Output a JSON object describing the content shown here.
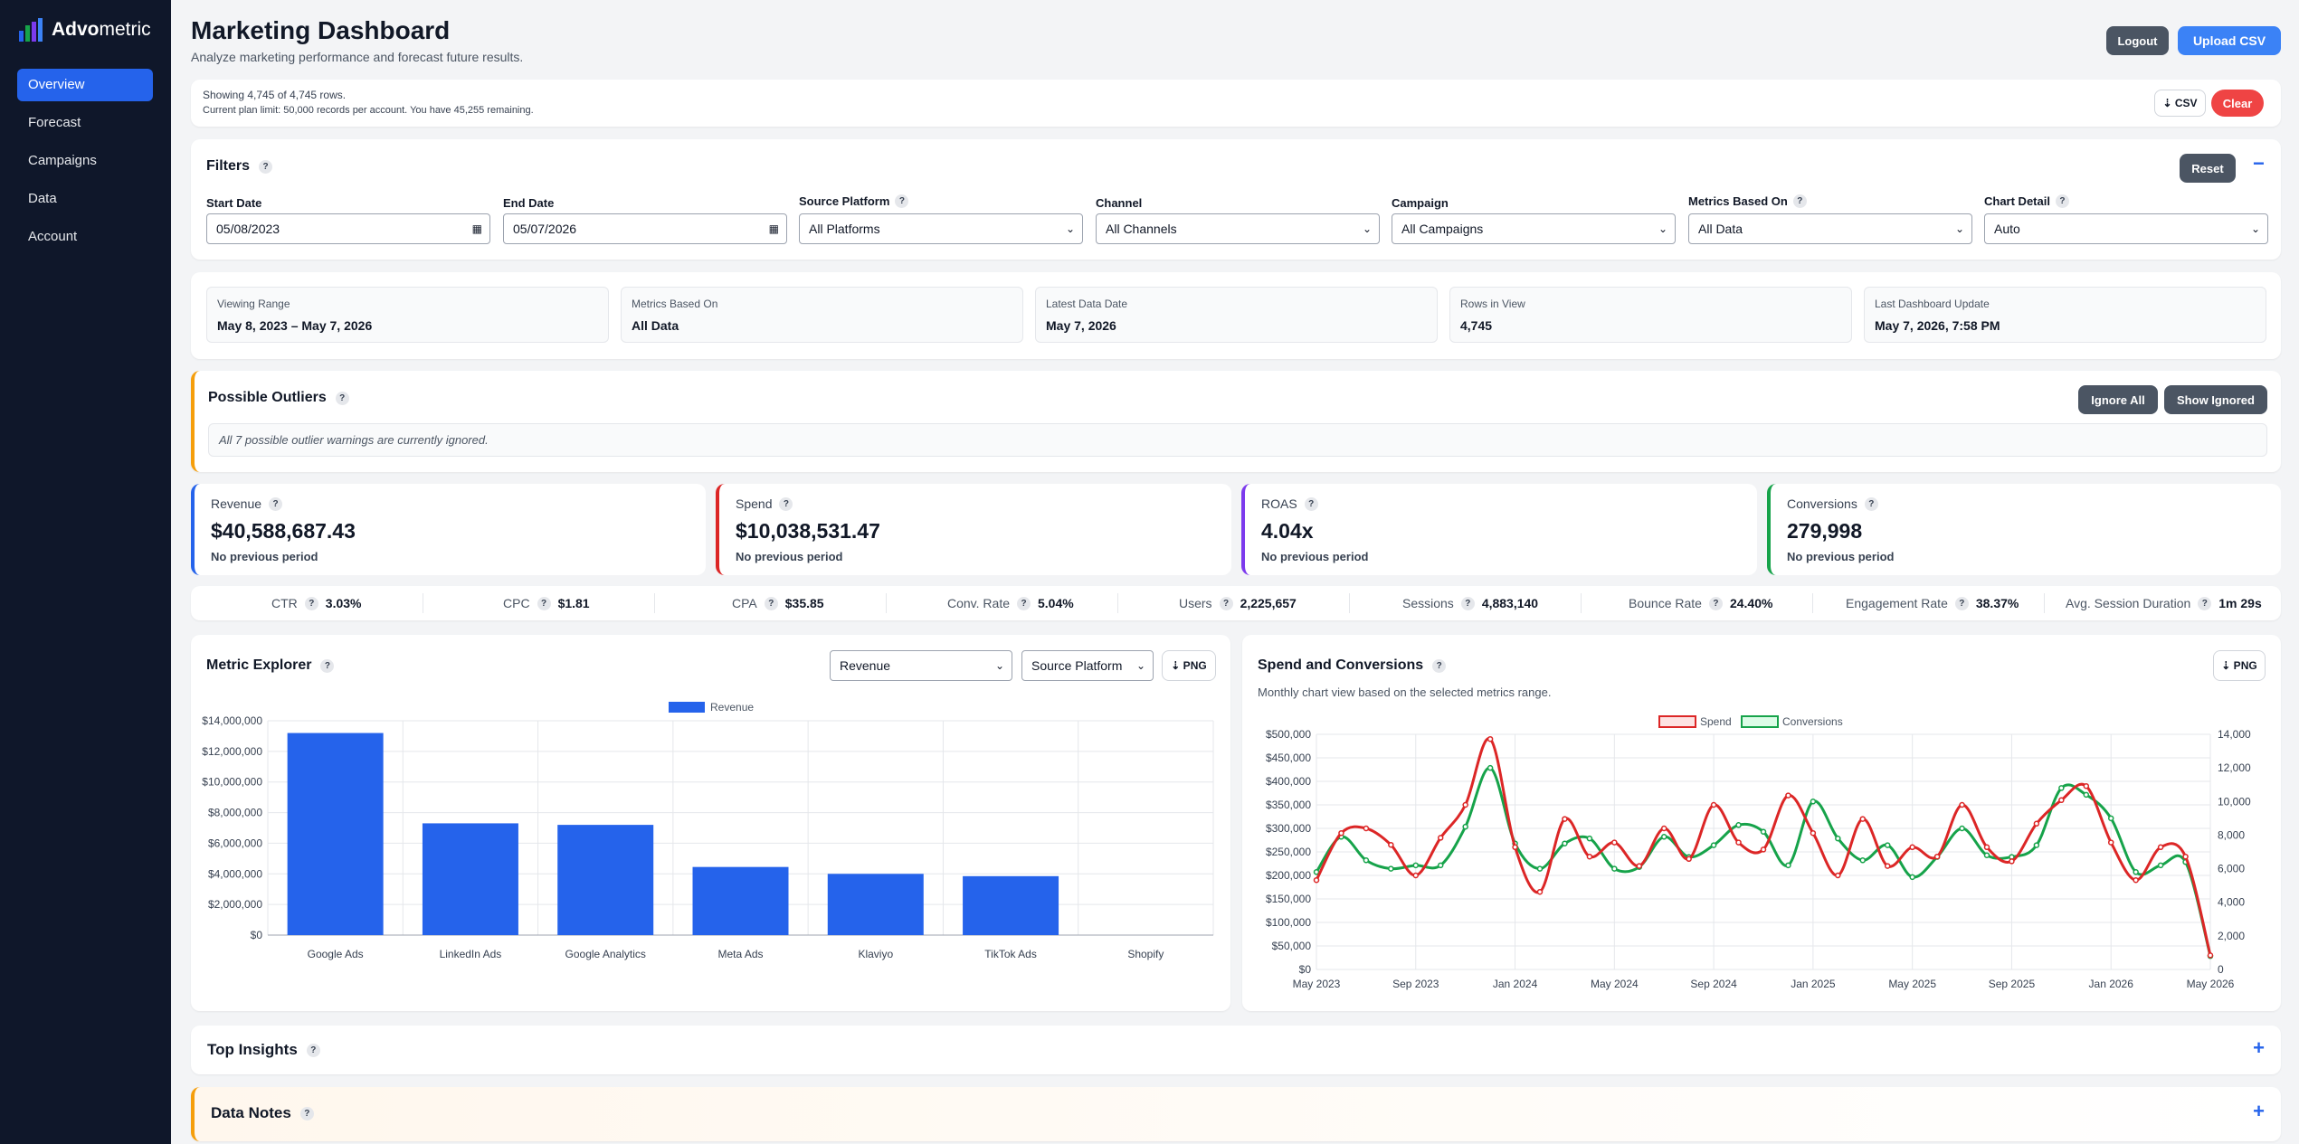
{
  "brand": {
    "name_bold": "Advo",
    "name_rest": "metric",
    "logo_icon": "bar-chart-logo"
  },
  "nav": [
    {
      "label": "Overview",
      "active": true
    },
    {
      "label": "Forecast"
    },
    {
      "label": "Campaigns"
    },
    {
      "label": "Data"
    },
    {
      "label": "Account"
    }
  ],
  "header": {
    "title": "Marketing Dashboard",
    "subtitle": "Analyze marketing performance and forecast future results.",
    "logout_label": "Logout",
    "upload_label": "Upload CSV"
  },
  "rows_info": {
    "line1": "Showing 4,745 of 4,745 rows.",
    "line2": "Current plan limit: 50,000 records per account. You have 45,255 remaining.",
    "csv_label": "⇣ CSV",
    "clear_label": "Clear"
  },
  "filters": {
    "title": "Filters",
    "help": "?",
    "reset_label": "Reset",
    "collapse_label": "−",
    "fields": [
      {
        "label": "Start Date",
        "value": "05/08/2023",
        "type": "date"
      },
      {
        "label": "End Date",
        "value": "05/07/2026",
        "type": "date"
      },
      {
        "label": "Source Platform",
        "value": "All Platforms",
        "help": true
      },
      {
        "label": "Channel",
        "value": "All Channels"
      },
      {
        "label": "Campaign",
        "value": "All Campaigns"
      },
      {
        "label": "Metrics Based On",
        "value": "All Data",
        "help": true
      },
      {
        "label": "Chart Detail",
        "value": "Auto",
        "help": true
      }
    ]
  },
  "summary": [
    {
      "label": "Viewing Range",
      "value": "May 8, 2023 – May 7, 2026"
    },
    {
      "label": "Metrics Based On",
      "value": "All Data"
    },
    {
      "label": "Latest Data Date",
      "value": "May 7, 2026"
    },
    {
      "label": "Rows in View",
      "value": "4,745"
    },
    {
      "label": "Last Dashboard Update",
      "value": "May 7, 2026, 7:58 PM"
    }
  ],
  "outliers": {
    "title": "Possible Outliers",
    "ignore_all_label": "Ignore All",
    "show_ignored_label": "Show Ignored",
    "message": "All 7 possible outlier warnings are currently ignored.",
    "accent": "#f59e0b"
  },
  "kpis": [
    {
      "label": "Revenue",
      "value": "$40,588,687.43",
      "sub": "No previous period",
      "color": "#2563eb"
    },
    {
      "label": "Spend",
      "value": "$10,038,531.47",
      "sub": "No previous period",
      "color": "#dc2626"
    },
    {
      "label": "ROAS",
      "value": "4.04x",
      "sub": "No previous period",
      "color": "#7c3aed"
    },
    {
      "label": "Conversions",
      "value": "279,998",
      "sub": "No previous period",
      "color": "#16a34a"
    }
  ],
  "metrics_row": [
    {
      "label": "CTR",
      "value": "3.03%"
    },
    {
      "label": "CPC",
      "value": "$1.81"
    },
    {
      "label": "CPA",
      "value": "$35.85"
    },
    {
      "label": "Conv. Rate",
      "value": "5.04%"
    },
    {
      "label": "Users",
      "value": "2,225,657"
    },
    {
      "label": "Sessions",
      "value": "4,883,140"
    },
    {
      "label": "Bounce Rate",
      "value": "24.40%"
    },
    {
      "label": "Engagement Rate",
      "value": "38.37%"
    },
    {
      "label": "Avg. Session Duration",
      "value": "1m 29s"
    }
  ],
  "metric_explorer": {
    "title": "Metric Explorer",
    "metric_select": "Revenue",
    "group_select": "Source Platform",
    "png_label": "⇣ PNG"
  },
  "spend_conv": {
    "title": "Spend and Conversions",
    "subtitle": "Monthly chart view based on the selected metrics range.",
    "png_label": "⇣ PNG"
  },
  "chart_data": [
    {
      "type": "bar",
      "categories": [
        "Google Ads",
        "LinkedIn Ads",
        "Google Analytics",
        "Meta Ads",
        "Klaviyo",
        "TikTok Ads",
        "Shopify"
      ],
      "series": [
        {
          "name": "Revenue",
          "values": [
            13200000,
            7300000,
            7200000,
            4450000,
            4000000,
            3850000,
            0
          ],
          "color": "#2563eb"
        }
      ],
      "ylim": [
        0,
        14000000
      ],
      "yticks": [
        "$0",
        "$2,000,000",
        "$4,000,000",
        "$6,000,000",
        "$8,000,000",
        "$10,000,000",
        "$12,000,000",
        "$14,000,000"
      ],
      "legend": "top-center",
      "grid": true
    },
    {
      "type": "line",
      "x": [
        "2023-05",
        "2023-06",
        "2023-07",
        "2023-08",
        "2023-09",
        "2023-10",
        "2023-11",
        "2023-12",
        "2024-01",
        "2024-02",
        "2024-03",
        "2024-04",
        "2024-05",
        "2024-06",
        "2024-07",
        "2024-08",
        "2024-09",
        "2024-10",
        "2024-11",
        "2024-12",
        "2025-01",
        "2025-02",
        "2025-03",
        "2025-04",
        "2025-05",
        "2025-06",
        "2025-07",
        "2025-08",
        "2025-09",
        "2025-10",
        "2025-11",
        "2025-12",
        "2026-01",
        "2026-02",
        "2026-03",
        "2026-04",
        "2026-05"
      ],
      "xticks": [
        "May 2023",
        "Sep 2023",
        "Jan 2024",
        "May 2024",
        "Sep 2024",
        "Jan 2025",
        "May 2025",
        "Sep 2025",
        "Jan 2026",
        "May 2026"
      ],
      "series": [
        {
          "name": "Spend",
          "axis": "left",
          "color": "#dc2626",
          "values": [
            190000,
            290000,
            300000,
            265000,
            200000,
            280000,
            350000,
            490000,
            260000,
            165000,
            320000,
            240000,
            270000,
            220000,
            300000,
            235000,
            350000,
            270000,
            255000,
            370000,
            290000,
            200000,
            320000,
            220000,
            260000,
            240000,
            350000,
            260000,
            230000,
            310000,
            360000,
            390000,
            270000,
            190000,
            260000,
            240000,
            30000
          ]
        },
        {
          "name": "Conversions",
          "axis": "right",
          "color": "#16a34a",
          "values": [
            5800,
            7900,
            6500,
            6000,
            6200,
            6200,
            8500,
            12000,
            7500,
            6000,
            7500,
            7800,
            6000,
            6100,
            7900,
            6700,
            7400,
            8600,
            8200,
            6200,
            10000,
            7800,
            6500,
            7400,
            5500,
            6700,
            8400,
            6800,
            6700,
            7400,
            10800,
            10400,
            9000,
            5800,
            6200,
            6400,
            800
          ]
        }
      ],
      "ylim_left": [
        0,
        500000
      ],
      "yticks_left": [
        "$0",
        "$50,000",
        "$100,000",
        "$150,000",
        "$200,000",
        "$250,000",
        "$300,000",
        "$350,000",
        "$400,000",
        "$450,000",
        "$500,000"
      ],
      "ylim_right": [
        0,
        14000
      ],
      "yticks_right": [
        "0",
        "2,000",
        "4,000",
        "6,000",
        "8,000",
        "10,000",
        "12,000",
        "14,000"
      ],
      "legend": "top-center",
      "grid": true
    }
  ],
  "top_insights": {
    "title": "Top Insights",
    "expand_label": "+"
  },
  "data_notes": {
    "title": "Data Notes",
    "expand_label": "+",
    "accent": "#f59e0b"
  }
}
